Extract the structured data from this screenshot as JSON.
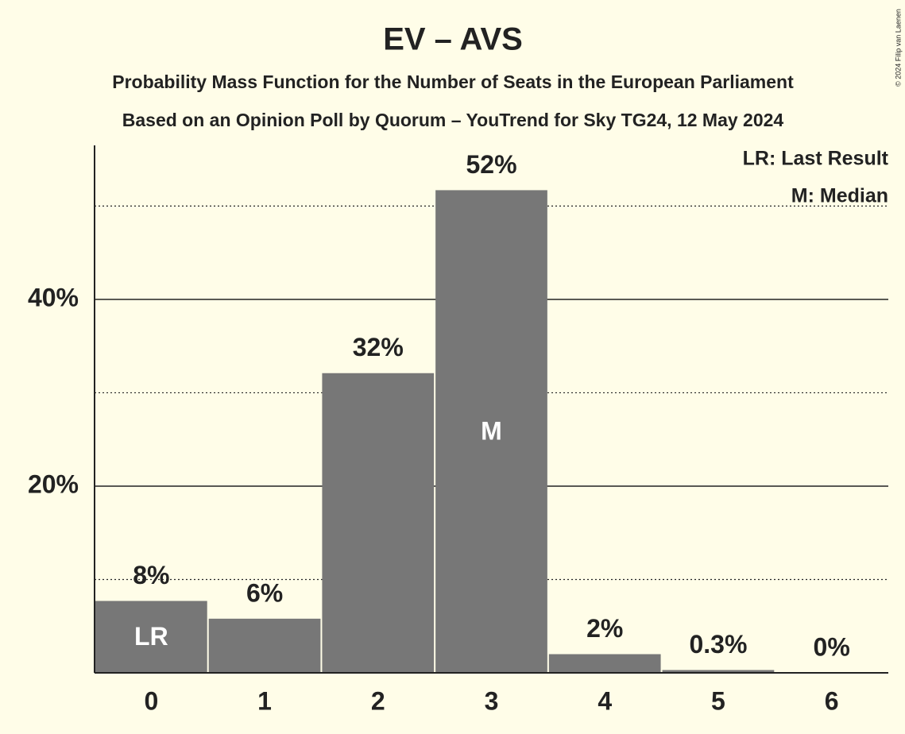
{
  "chart_data": {
    "type": "bar",
    "title": "EV – AVS",
    "subtitle": "Probability Mass Function for the Number of Seats in the European Parliament",
    "subtitle2": "Based on an Opinion Poll by Quorum – YouTrend for Sky TG24, 12 May 2024",
    "credit": "© 2024 Filip van Laenen",
    "legend_notes": [
      "LR: Last Result",
      "M: Median"
    ],
    "categories": [
      "0",
      "1",
      "2",
      "3",
      "4",
      "5",
      "6"
    ],
    "values": [
      7.7,
      5.8,
      32.1,
      51.7,
      2,
      0.3,
      0
    ],
    "value_labels": [
      "8%",
      "6%",
      "32%",
      "52%",
      "2%",
      "0.3%",
      "0%"
    ],
    "bar_labels": [
      "LR",
      null,
      null,
      "M",
      null,
      null,
      null
    ],
    "color": "#777777",
    "ylim": [
      0,
      56.5
    ],
    "yticks": [
      {
        "value": 20,
        "label": "20%"
      },
      {
        "value": 40,
        "label": "40%"
      }
    ],
    "minor_yticks": [
      10,
      30,
      50
    ],
    "grid": true
  }
}
